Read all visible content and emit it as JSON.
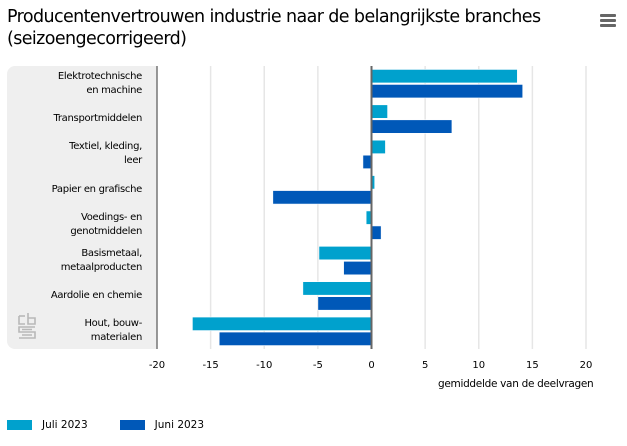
{
  "header": {
    "title": "Producentenvertrouwen industrie naar de belangrijkste branches (seizoengecorrigeerd)",
    "menu_icon": "hamburger-menu-icon"
  },
  "logo": "cbs-logo-icon",
  "chart_data": {
    "type": "bar",
    "orientation": "horizontal",
    "title": "Producentenvertrouwen industrie naar de belangrijkste branches (seizoengecorrigeerd)",
    "xlabel": "gemiddelde van de deelvragen",
    "ylabel": "",
    "xlim": [
      -20,
      20
    ],
    "xticks": [
      -20,
      -15,
      -10,
      -5,
      0,
      5,
      10,
      15,
      20
    ],
    "xtick_labels": [
      "-20",
      "-15",
      "-10",
      "-5",
      "0",
      "5",
      "10",
      "15",
      "20"
    ],
    "grid": true,
    "legend_position": "bottom-left",
    "categories": [
      "Elektrotechnische en machine",
      "Transportmiddelen",
      "Textiel, kleding, leer",
      "Papier en grafische",
      "Voedings- en genotmiddelen",
      "Basismetaal, metaalproducten",
      "Aardolie en chemie",
      "Hout, bouw- materialen"
    ],
    "category_lines": [
      [
        "Elektrotechnische",
        "en machine"
      ],
      [
        "Transportmiddelen"
      ],
      [
        "Textiel, kleding,",
        "leer"
      ],
      [
        "Papier en grafische"
      ],
      [
        "Voedings- en",
        "genotmiddelen"
      ],
      [
        "Basismetaal,",
        "metaalproducten"
      ],
      [
        "Aardolie en chemie"
      ],
      [
        "Hout, bouw-",
        "materialen"
      ]
    ],
    "series": [
      {
        "name": "Juli 2023",
        "color": "#00a1cd",
        "values": [
          13.6,
          1.5,
          1.3,
          0.3,
          -0.5,
          -4.9,
          -6.4,
          -16.7
        ]
      },
      {
        "name": "Juni 2023",
        "color": "#0058b8",
        "values": [
          14.1,
          7.5,
          -0.8,
          -9.2,
          0.9,
          -2.6,
          -5.0,
          -14.2
        ]
      }
    ]
  },
  "legend": {
    "items": [
      {
        "label": "Juli 2023",
        "color": "#00a1cd"
      },
      {
        "label": "Juni 2023",
        "color": "#0058b8"
      }
    ]
  }
}
